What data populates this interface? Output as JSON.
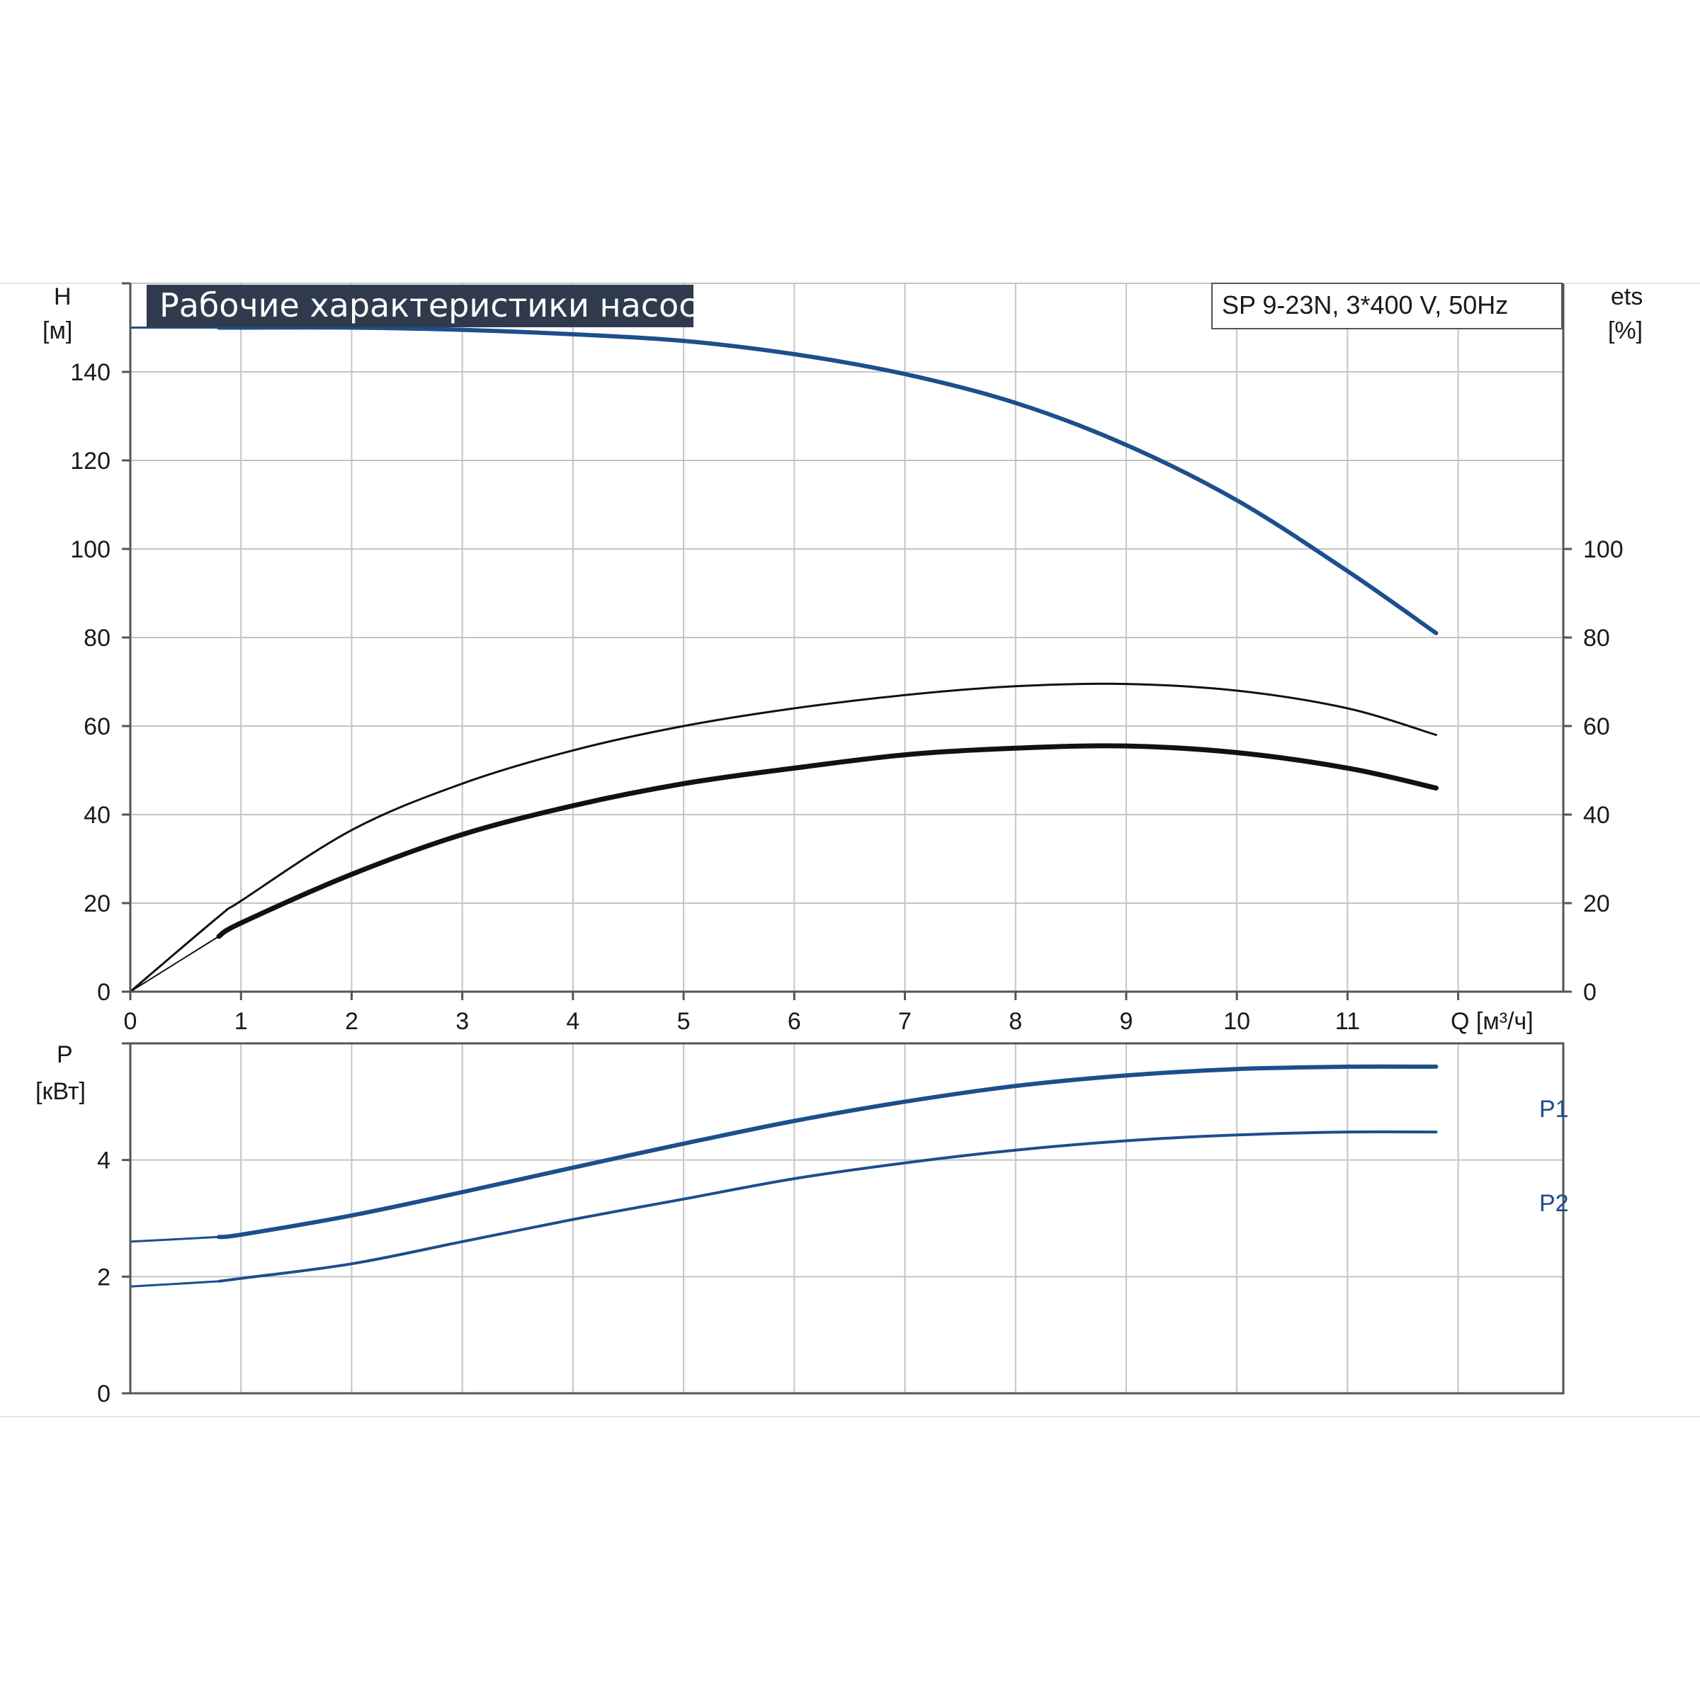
{
  "title": "Рабочие характеристики насоса",
  "model": "SP 9-23N, 3*400 V, 50Hz",
  "colors": {
    "accent": "#1c4f8c",
    "title_bg": "#2f3b4d",
    "black": "#111111"
  },
  "chart_data": [
    {
      "type": "line",
      "xlabel": "Q [м³/ч]",
      "x_ticks": [
        "0",
        "1",
        "2",
        "3",
        "4",
        "5",
        "6",
        "7",
        "8",
        "9",
        "10",
        "11"
      ],
      "xlim": [
        0,
        12.95
      ],
      "ylabel": "H",
      "ylabel_unit": "[м]",
      "ylim": [
        0,
        160
      ],
      "y_ticks": [
        "0",
        "20",
        "40",
        "60",
        "80",
        "100",
        "120",
        "140"
      ],
      "y2label": "ets",
      "y2label_unit": "[%]",
      "y2_ticks": [
        "0",
        "20",
        "40",
        "60",
        "80",
        "100"
      ],
      "grid": true,
      "series": [
        {
          "style": "head",
          "color": "#1c4f8c",
          "x": [
            0,
            0.8,
            1,
            2,
            3,
            4,
            5,
            6,
            7,
            8,
            9,
            10,
            11,
            11.8
          ],
          "y": [
            150,
            150,
            150,
            150,
            149.5,
            148.5,
            147,
            144,
            139.5,
            133,
            123.5,
            111,
            95,
            81
          ],
          "leading_thin_until": 0.8
        },
        {
          "style": "efficiency-thin",
          "color": "#111111",
          "x": [
            0,
            0.8,
            1,
            2,
            3,
            4,
            5,
            6,
            7,
            8,
            9,
            10,
            11,
            11.8
          ],
          "y": [
            0,
            17,
            20.5,
            36.5,
            47,
            54.5,
            60,
            64,
            67,
            69,
            69.5,
            68,
            64,
            58
          ]
        },
        {
          "style": "efficiency-bold",
          "color": "#111111",
          "x": [
            0,
            0.8,
            1,
            2,
            3,
            4,
            5,
            6,
            7,
            8,
            9,
            10,
            11,
            11.8
          ],
          "y": [
            0,
            12.5,
            15.5,
            26.5,
            35.5,
            42,
            47,
            50.5,
            53.5,
            55,
            55.5,
            54,
            50.5,
            46
          ],
          "leading_thin_until": 0.8
        }
      ]
    },
    {
      "type": "line",
      "ylabel": "P",
      "ylabel_unit": "[кВт]",
      "xlim": [
        0,
        12.95
      ],
      "ylim": [
        0,
        6
      ],
      "y_ticks": [
        "0",
        "2",
        "4"
      ],
      "grid": true,
      "series": [
        {
          "name": "P1",
          "color": "#1c4f8c",
          "x": [
            0,
            0.8,
            1,
            2,
            3,
            4,
            5,
            6,
            7,
            8,
            9,
            10,
            11,
            11.8
          ],
          "y": [
            2.6,
            2.68,
            2.72,
            3.05,
            3.45,
            3.87,
            4.28,
            4.67,
            5.0,
            5.27,
            5.45,
            5.56,
            5.6,
            5.6
          ],
          "leading_thin_until": 0.8
        },
        {
          "name": "P2",
          "color": "#1c4f8c",
          "x": [
            0,
            0.8,
            1,
            2,
            3,
            4,
            5,
            6,
            7,
            8,
            9,
            10,
            11,
            11.8
          ],
          "y": [
            1.83,
            1.92,
            1.97,
            2.22,
            2.6,
            2.98,
            3.33,
            3.68,
            3.95,
            4.17,
            4.33,
            4.43,
            4.48,
            4.48
          ],
          "leading_thin_until": 0.8
        }
      ]
    }
  ]
}
